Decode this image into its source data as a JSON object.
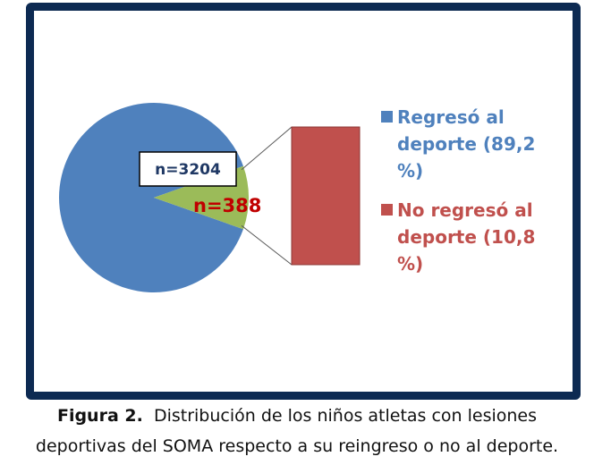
{
  "chart_data": {
    "type": "pie",
    "categories": [
      "Regresó al deporte (89,2 %)",
      "No regresó al deporte (10,8 %)"
    ],
    "values": [
      3204,
      388
    ],
    "percentages": [
      89.2,
      10.8
    ],
    "data_labels": [
      "n=3204",
      "n=388"
    ],
    "legend": {
      "placement": "right",
      "entries": [
        {
          "lines": [
            "Regresó al",
            "deporte (89,2",
            "%)"
          ],
          "color": "#4f81bd"
        },
        {
          "lines": [
            "No regresó al",
            "deporte (10,8",
            "%)"
          ],
          "color": "#c0504d"
        }
      ]
    },
    "colors": {
      "pie_main": "#4f81bd",
      "pie_slice": "#9bbb59",
      "bar_of_pie": "#c0504d",
      "label_n_main": "#1f3864",
      "label_n_slice": "#c00000"
    }
  },
  "caption": {
    "label": "Figura 2.",
    "line1": "Distribución de los niños atletas con lesiones",
    "line2": "deportivas del SOMA respecto a su reingreso o no al deporte."
  },
  "colors": {
    "frame": "#0d2a52"
  }
}
